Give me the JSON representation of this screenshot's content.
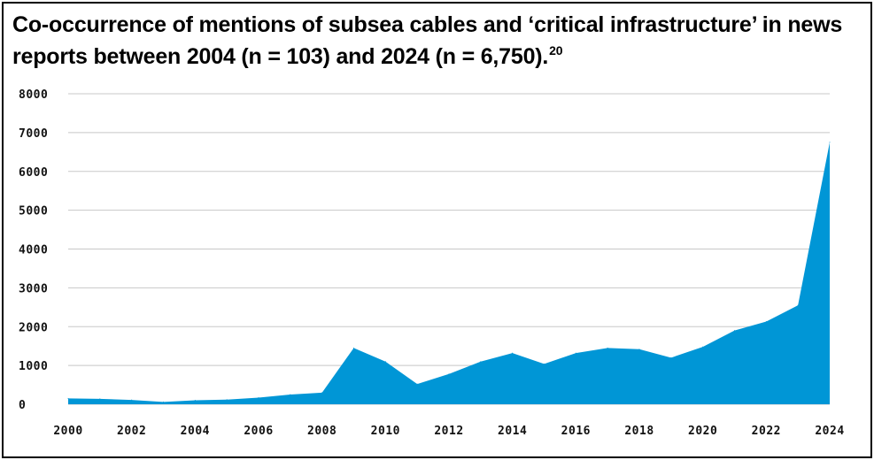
{
  "title": {
    "main": "Co-occurrence of mentions of subsea cables and ‘critical infrastructure’ in news reports between 2004 (n = 103) and 2024 (n = 6,750).",
    "footnote": "20"
  },
  "chart_data": {
    "type": "area",
    "title": "Co-occurrence of mentions of subsea cables and ‘critical infrastructure’ in news reports between 2004 (n = 103) and 2024 (n = 6,750).",
    "xlabel": "",
    "ylabel": "",
    "x": [
      2000,
      2001,
      2002,
      2003,
      2004,
      2005,
      2006,
      2007,
      2008,
      2009,
      2010,
      2011,
      2012,
      2013,
      2014,
      2015,
      2016,
      2017,
      2018,
      2019,
      2020,
      2021,
      2022,
      2023,
      2024
    ],
    "values": [
      150,
      140,
      110,
      60,
      103,
      120,
      170,
      250,
      300,
      1450,
      1100,
      520,
      780,
      1100,
      1320,
      1040,
      1320,
      1450,
      1420,
      1200,
      1480,
      1900,
      2130,
      2550,
      6750
    ],
    "xticks": [
      "2000",
      "2002",
      "2004",
      "2006",
      "2008",
      "2010",
      "2012",
      "2014",
      "2016",
      "2018",
      "2020",
      "2022",
      "2024"
    ],
    "yticks": [
      "0",
      "1000",
      "2000",
      "3000",
      "4000",
      "5000",
      "6000",
      "7000",
      "8000"
    ],
    "xlim": [
      2000,
      2024
    ],
    "ylim": [
      0,
      8000
    ],
    "grid": true,
    "legend": "none",
    "fill_color": "#0096d6",
    "grid_color": "#c8c8c8"
  }
}
